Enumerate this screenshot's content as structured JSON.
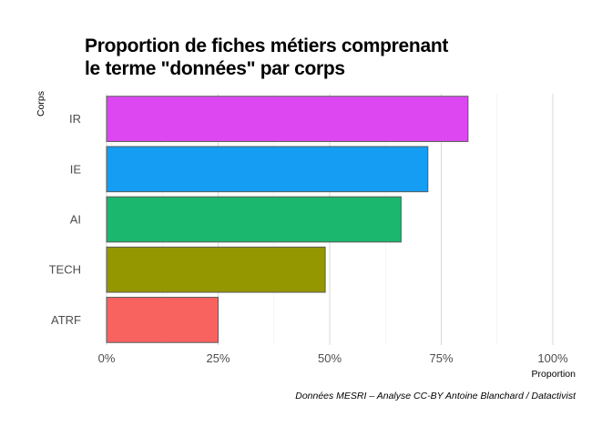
{
  "chart_data": {
    "type": "bar",
    "orientation": "horizontal",
    "title_lines": [
      "Proportion de fiches métiers comprenant",
      "le terme \"données\" par corps"
    ],
    "xlabel": "Proportion",
    "ylabel": "Corps",
    "caption": "Données MESRI – Analyse CC-BY Antoine Blanchard / Datactivist",
    "categories": [
      "IR",
      "IE",
      "AI",
      "TECH",
      "ATRF"
    ],
    "values": [
      0.81,
      0.72,
      0.66,
      0.49,
      0.25
    ],
    "colors": [
      "#DC47F2",
      "#149DF2",
      "#1BB76E",
      "#949700",
      "#F8625F"
    ],
    "xlim": [
      0,
      1
    ],
    "x_ticks": [
      0,
      0.25,
      0.5,
      0.75,
      1
    ],
    "x_tick_labels": [
      "0%",
      "25%",
      "50%",
      "75%",
      "100%"
    ],
    "grid": "vertical",
    "legend": "none"
  }
}
